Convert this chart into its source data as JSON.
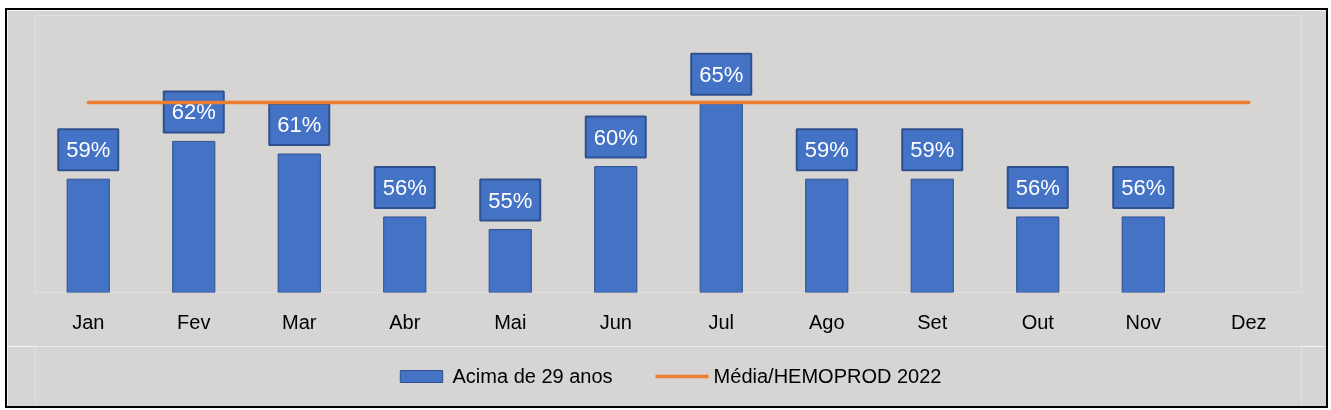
{
  "chart_data": {
    "type": "bar",
    "categories": [
      "Jan",
      "Fev",
      "Mar",
      "Abr",
      "Mai",
      "Jun",
      "Jul",
      "Ago",
      "Set",
      "Out",
      "Nov",
      "Dez"
    ],
    "ylim": [
      50,
      72
    ],
    "tick_labels": "x",
    "legend": "bottom",
    "series": [
      {
        "name": "Acima de 29 anos",
        "color": "#4472c4",
        "values": [
          59,
          62,
          61,
          56,
          55,
          60,
          65,
          59,
          59,
          56,
          56,
          null
        ],
        "value_labels": [
          "59%",
          "62%",
          "61%",
          "56%",
          "55%",
          "60%",
          "65%",
          "59%",
          "59%",
          "56%",
          "56%",
          null
        ]
      },
      {
        "name": "Média/HEMOPROD 2022",
        "type": "line",
        "color": "#ed7d31",
        "values": [
          65.1,
          65.1,
          65.1,
          65.1,
          65.1,
          65.1,
          65.1,
          65.1,
          65.1,
          65.1,
          65.1,
          65.1
        ]
      }
    ]
  }
}
